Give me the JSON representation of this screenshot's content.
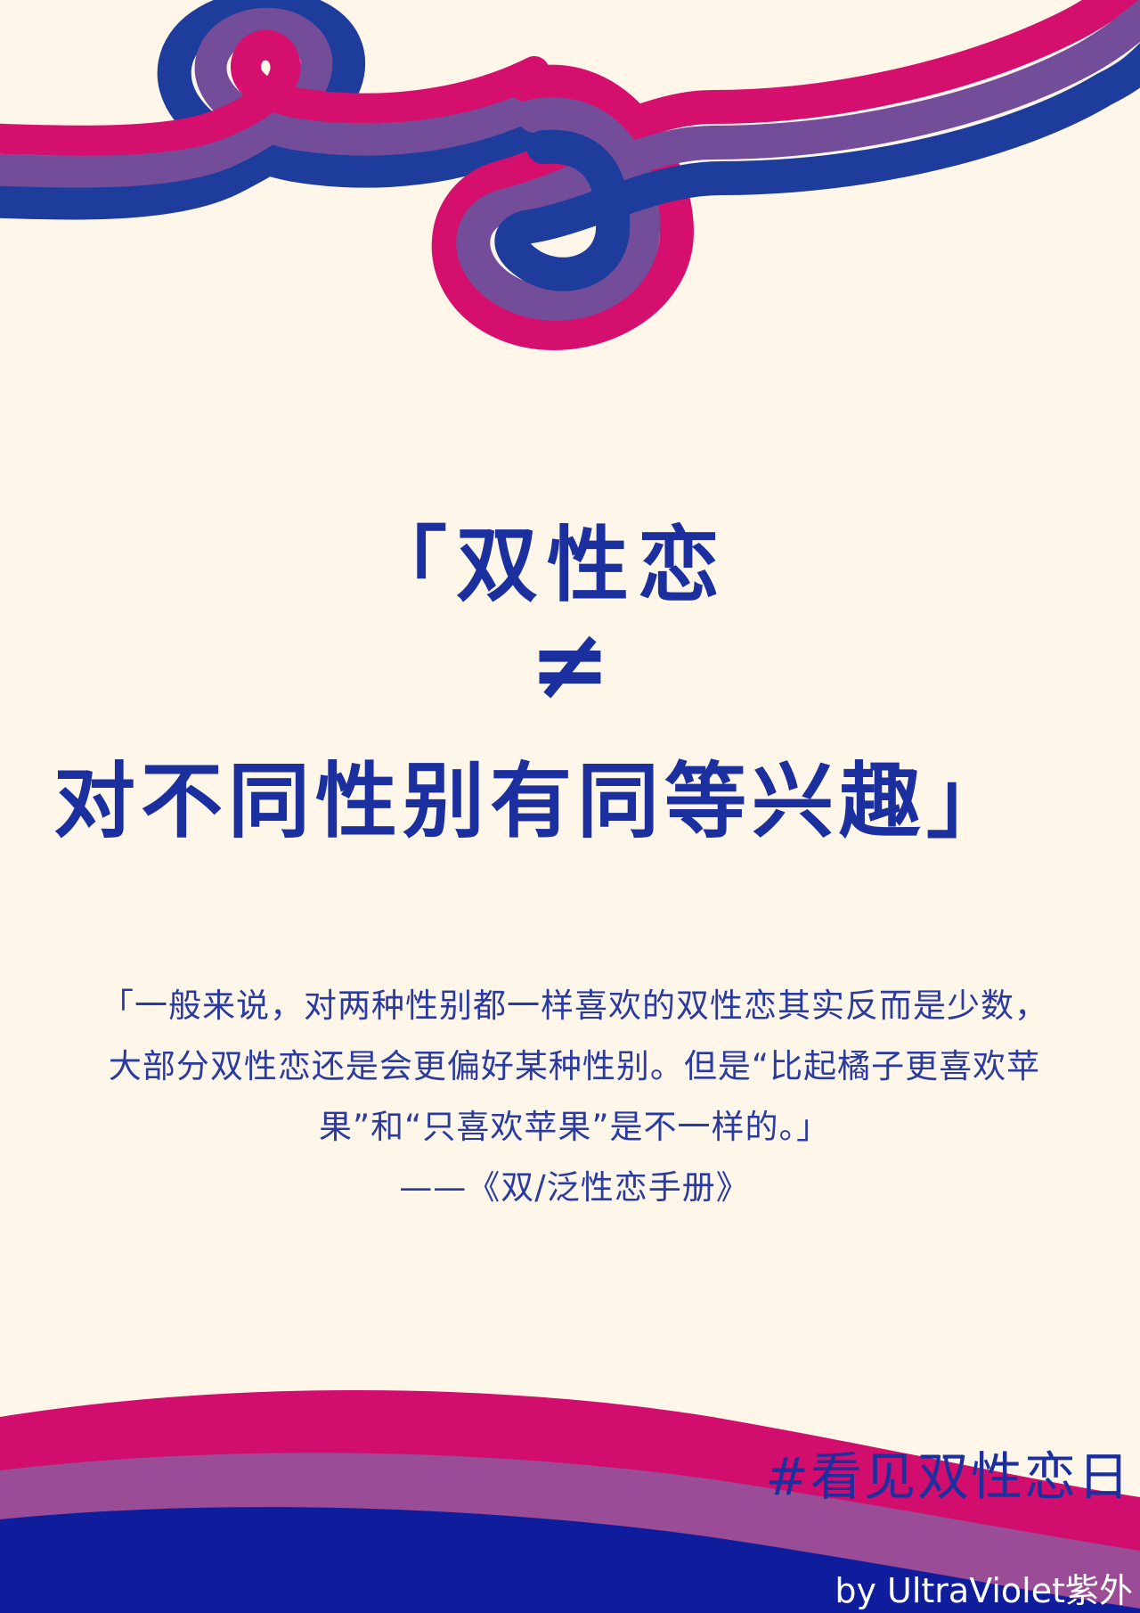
{
  "headline": {
    "line1": "「双性恋",
    "line2": "≠",
    "line3": "对不同性别有同等兴趣」"
  },
  "quote": {
    "line1": "「一般来说，对两种性别都一样喜欢的双性恋其实反而是少数，",
    "line2": "大部分双性恋还是会更偏好某种性别。但是“比起橘子更喜欢苹",
    "line3": "果”和“只喜欢苹果”是不一样的。」",
    "source": "——《双/泛性恋手册》"
  },
  "hashtag": "#看见双性恋日",
  "credit": "by UltraViolet紫外",
  "colors": {
    "background": "#fdf6e9",
    "pink": "#d40f6e",
    "purple": "#734d9a",
    "blue": "#1d3c9b",
    "text_blue": "#1b2f9e",
    "wave_pink": "#d10d6e",
    "wave_purple": "#9a4c96",
    "wave_blue": "#0f1c9b"
  }
}
